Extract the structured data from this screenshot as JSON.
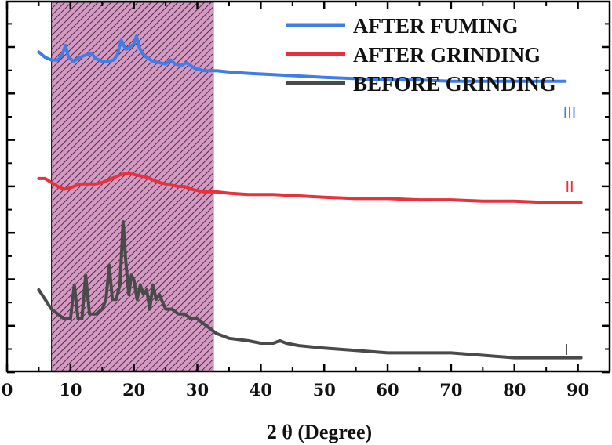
{
  "chart_data": {
    "type": "line",
    "xlabel": "2 θ (Degree)",
    "xlim": [
      0,
      95
    ],
    "xticks": [
      0,
      10,
      20,
      30,
      40,
      50,
      60,
      70,
      80,
      90
    ],
    "y_tick_labels_shown": false,
    "shaded_region": {
      "x": [
        7,
        32.5
      ],
      "fill": "#d49ac4",
      "hatch": "diagonal"
    },
    "legend": {
      "placement": "top-right"
    },
    "series": [
      {
        "name": "AFTER FUMING",
        "label": "III",
        "color": "#3f7ee8",
        "x": [
          5,
          6,
          7,
          8,
          8.7,
          9.2,
          9.7,
          10.5,
          11.5,
          12.5,
          13.3,
          14,
          15,
          16,
          16.8,
          17.4,
          18,
          18.4,
          18.8,
          19.4,
          20,
          20.4,
          20.8,
          21.3,
          22,
          23,
          24,
          25,
          25.8,
          26.5,
          27.5,
          28.3,
          29.5,
          31,
          33,
          35,
          38,
          42,
          46,
          50,
          55,
          60,
          65,
          70,
          75,
          80,
          85,
          88
        ],
        "y": [
          68,
          64,
          62,
          62,
          66,
          73,
          64,
          61,
          64,
          66,
          67,
          63,
          61,
          61,
          62,
          66,
          77,
          73,
          70,
          72,
          74,
          80,
          72,
          67,
          64,
          61,
          60,
          59,
          62,
          59,
          58,
          60,
          56,
          54,
          54,
          53,
          52,
          51,
          50,
          49,
          48,
          47,
          47,
          46,
          46,
          46,
          46,
          46
        ]
      },
      {
        "name": "AFTER GRINDING",
        "label": "II",
        "color": "#e8313d",
        "x": [
          5,
          6,
          7,
          8,
          9,
          10,
          11,
          12,
          13,
          14,
          15,
          16,
          17,
          18,
          19,
          20,
          21,
          22,
          23,
          24,
          25,
          26,
          27,
          28,
          29,
          30,
          31,
          32,
          33,
          35,
          38,
          42,
          46,
          50,
          55,
          60,
          65,
          70,
          75,
          80,
          85,
          88,
          90.5
        ],
        "y": [
          43,
          43,
          40,
          37,
          35,
          36,
          38,
          39,
          39,
          39,
          40,
          42,
          44,
          46,
          47,
          46,
          45,
          44,
          42,
          40,
          39,
          38,
          37,
          37,
          35,
          34,
          33,
          33,
          33,
          32,
          31,
          31,
          30,
          29,
          28,
          28,
          27,
          27,
          26,
          26,
          25,
          25,
          25
        ]
      },
      {
        "name": "BEFORE GRINDING",
        "label": "I",
        "color": "#4a4a4a",
        "x": [
          5,
          6,
          7,
          8,
          9,
          10,
          10.6,
          11.2,
          11.8,
          12.4,
          13,
          14,
          15,
          15.6,
          16.1,
          16.6,
          17.2,
          17.8,
          18.3,
          18.7,
          19.2,
          19.6,
          20,
          20.5,
          21,
          21.5,
          22,
          22.5,
          23,
          23.5,
          24,
          25,
          26,
          27,
          28,
          29,
          30,
          31,
          32,
          33,
          35,
          38,
          40,
          42,
          43,
          44,
          46,
          50,
          55,
          60,
          65,
          70,
          75,
          80,
          85,
          88,
          90.5
        ],
        "y": [
          16,
          14,
          12,
          11,
          10,
          10,
          17,
          10,
          10,
          19,
          11,
          11,
          12,
          14,
          21,
          14,
          14,
          17,
          30,
          22,
          15,
          19,
          18,
          14,
          17,
          15,
          16,
          12,
          17,
          14,
          15,
          12,
          12,
          11,
          11,
          10,
          10,
          9,
          8,
          7,
          6,
          5.5,
          5,
          5,
          5.5,
          5,
          4.5,
          4,
          3.5,
          3,
          3,
          3,
          2.5,
          2,
          2,
          2,
          2
        ]
      }
    ]
  }
}
